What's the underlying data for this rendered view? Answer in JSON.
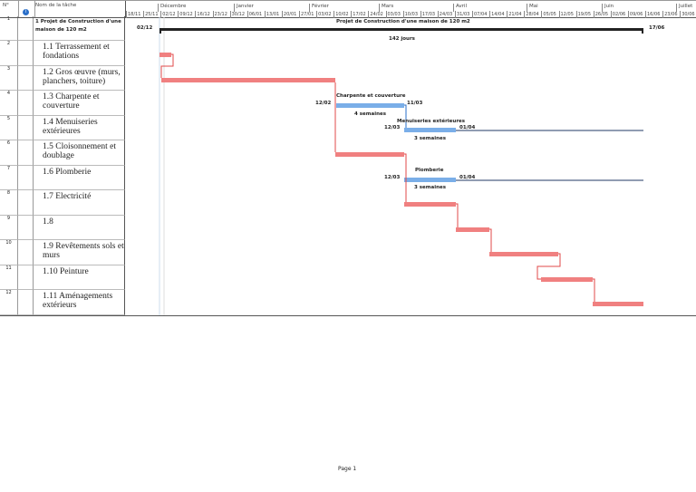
{
  "header": {
    "num": "N°",
    "info_icon": "info-icon",
    "name": "Nom de la tâche"
  },
  "timescale": {
    "months": [
      "Décembre",
      "Janvier",
      "Février",
      "Mars",
      "Avril",
      "Mai",
      "Juin",
      "Juillet"
    ],
    "weeks": [
      "18/11",
      "25/11",
      "02/12",
      "09/12",
      "16/12",
      "23/12",
      "30/12",
      "06/01",
      "13/01",
      "20/01",
      "27/01",
      "03/02",
      "10/02",
      "17/02",
      "24/02",
      "03/03",
      "10/03",
      "17/03",
      "24/03",
      "31/03",
      "07/04",
      "14/04",
      "21/04",
      "28/04",
      "05/05",
      "12/05",
      "19/05",
      "26/05",
      "02/06",
      "09/06",
      "16/06",
      "23/06",
      "30/06"
    ]
  },
  "tasks": [
    {
      "num": "1",
      "name": "1 Projet de Construction d'une maison de 120 m2"
    },
    {
      "num": "2",
      "name": "1.1 Terrassement et fondations"
    },
    {
      "num": "3",
      "name": "1.2 Gros œuvre (murs, planchers, toiture)"
    },
    {
      "num": "4",
      "name": "1.3 Charpente et couverture"
    },
    {
      "num": "5",
      "name": "1.4 Menuiseries extérieures"
    },
    {
      "num": "6",
      "name": "1.5 Cloisonnement et doublage"
    },
    {
      "num": "7",
      "name": "1.6 Plomberie"
    },
    {
      "num": "8",
      "name": "1.7 Electricité"
    },
    {
      "num": "9",
      "name": "1.8"
    },
    {
      "num": "10",
      "name": "1.9 Revêtements sols et murs"
    },
    {
      "num": "11",
      "name": "1.10 Peinture"
    },
    {
      "num": "12",
      "name": "1.11  Aménagements extérieurs"
    }
  ],
  "chart_labels": {
    "summary": {
      "title": "Projet de Construction d'une maison de 120 m2",
      "start": "02/12",
      "end": "17/06",
      "duration": "142 jours"
    },
    "charpente": {
      "title": "Charpente et couverture",
      "start": "12/02",
      "end": "11/03",
      "duration": "4 semaines"
    },
    "menuiseries": {
      "title": "Menuiseries extérieures",
      "start": "12/03",
      "end": "01/04",
      "duration": "3 semaines"
    },
    "plomberie": {
      "title": "Plomberie",
      "start": "12/03",
      "end": "01/04",
      "duration": "3 semaines"
    }
  },
  "colors": {
    "critical": "#f08080",
    "task": "#7aaee8",
    "summary": "#222222"
  },
  "footer": {
    "page": "Page 1"
  }
}
